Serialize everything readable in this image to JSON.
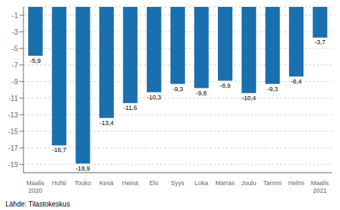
{
  "chart_data": {
    "type": "bar",
    "categories": [
      "Maalis\n2020",
      "Huhti",
      "Touko",
      "Kesä",
      "Heinä",
      "Elo",
      "Syys",
      "Loka",
      "Marras",
      "Joulu",
      "Tammi",
      "Helmi",
      "Maalis\n2021"
    ],
    "values": [
      -5.9,
      -16.7,
      -18.9,
      -13.4,
      -11.6,
      -10.3,
      -9.3,
      -9.8,
      -8.9,
      -10.4,
      -9.3,
      -8.4,
      -3.7
    ],
    "value_labels": [
      "-5,9",
      "-16,7",
      "-18,9",
      "-13,4",
      "-11,6",
      "-10,3",
      "-9,3",
      "-9,8",
      "-8,9",
      "-10,4",
      "-9,3",
      "-8,4",
      "-3,7"
    ],
    "data_labels": true,
    "color": "#1a6faf",
    "ylim": [
      -20,
      0
    ],
    "yticks": [
      -1,
      -3,
      -5,
      -7,
      -9,
      -11,
      -13,
      -15,
      -17,
      -19
    ],
    "grid": true,
    "annotations": [
      "Lähde: Tilastokeskus"
    ]
  }
}
